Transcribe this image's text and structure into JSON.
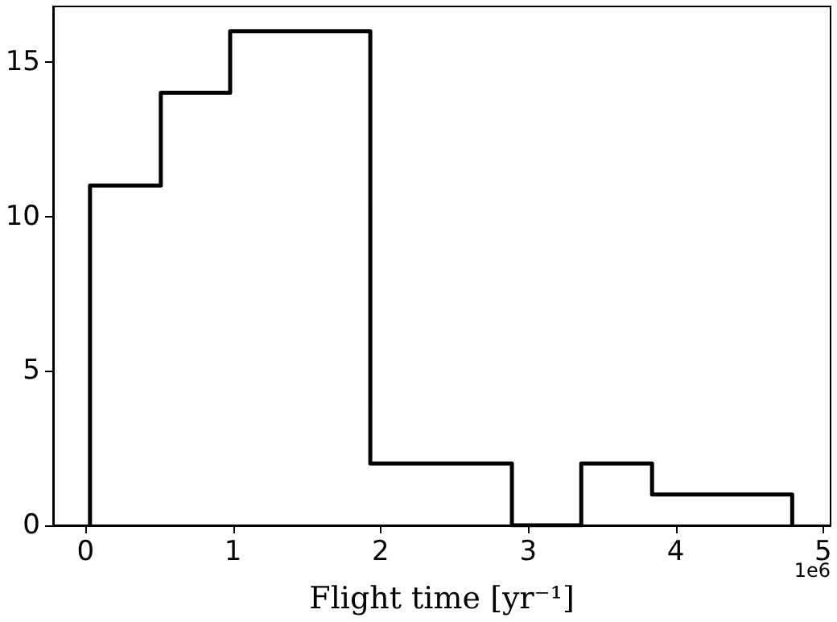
{
  "chart_data": {
    "type": "histogram",
    "xlabel": "Flight time [yr⁻¹]",
    "bins": [
      0.03,
      0.51,
      0.98,
      1.46,
      1.93,
      2.41,
      2.89,
      3.36,
      3.84,
      4.31,
      4.79
    ],
    "values": [
      11,
      14,
      16,
      16,
      2,
      2,
      0,
      2,
      1,
      1
    ],
    "color": "#000000",
    "xlim": [
      -0.22,
      5.05
    ],
    "xticks": [
      0,
      1,
      2,
      3,
      4,
      5
    ],
    "ylim": [
      0,
      16.8
    ],
    "yticks": [
      0,
      5,
      10,
      15
    ],
    "annotations": [
      "1e6"
    ],
    "grid": false
  }
}
